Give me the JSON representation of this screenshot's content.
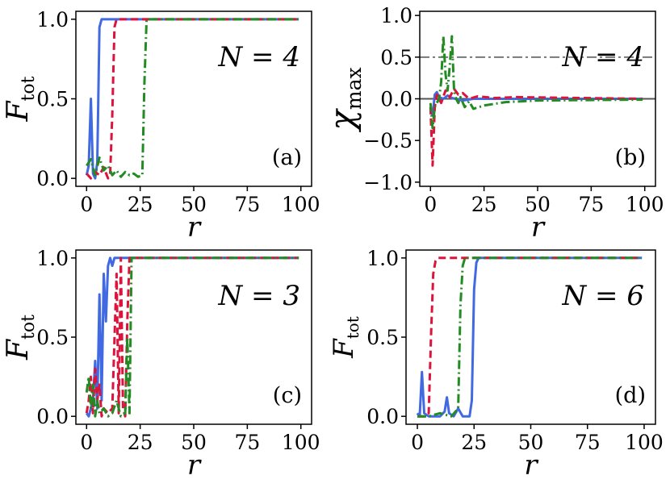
{
  "chart_data": [
    {
      "type": "line",
      "panel_label": "(a)",
      "annotation": "N = 4",
      "xlabel": "r",
      "ylabel": "F",
      "ylabel_sub": "tot",
      "xlim": [
        -5,
        105
      ],
      "ylim": [
        -0.05,
        1.05
      ],
      "xticks": [
        0,
        25,
        50,
        75,
        100
      ],
      "yticks": [
        0.0,
        0.5,
        1.0
      ],
      "ytick_labels": [
        "0.0",
        "0.5",
        "1.0"
      ],
      "reference_lines": [],
      "series": [
        {
          "color": "#4169e1",
          "dash": "solid",
          "x": [
            0,
            1,
            2,
            3,
            4,
            5,
            6,
            7,
            8,
            9,
            10,
            99
          ],
          "y": [
            0.02,
            0.08,
            0.5,
            0.03,
            0.0,
            0.1,
            0.95,
            1.0,
            1.0,
            1.0,
            1.0,
            1.0
          ]
        },
        {
          "color": "#dc143c",
          "dash": "dashed",
          "x": [
            0,
            2,
            4,
            6,
            8,
            10,
            11,
            12,
            13,
            14,
            16,
            99
          ],
          "y": [
            0.03,
            0.0,
            0.04,
            0.02,
            0.07,
            0.0,
            0.03,
            0.4,
            0.95,
            1.0,
            1.0,
            1.0
          ]
        },
        {
          "color": "#228b22",
          "dash": "dashdot",
          "x": [
            0,
            2,
            4,
            6,
            8,
            10,
            12,
            14,
            16,
            18,
            20,
            22,
            24,
            26,
            27,
            28,
            99
          ],
          "y": [
            0.08,
            0.12,
            0.02,
            0.13,
            0.05,
            0.08,
            0.02,
            0.05,
            0.01,
            0.04,
            0.02,
            0.03,
            0.01,
            0.02,
            0.6,
            1.0,
            1.0
          ]
        }
      ]
    },
    {
      "type": "line",
      "panel_label": "(b)",
      "annotation": "N = 4",
      "xlabel": "r",
      "ylabel": "χ",
      "ylabel_sub": "max",
      "xlim": [
        -5,
        105
      ],
      "ylim": [
        -1.05,
        1.05
      ],
      "xticks": [
        0,
        25,
        50,
        75,
        100
      ],
      "yticks": [
        -1.0,
        -0.5,
        0.0,
        0.5,
        1.0
      ],
      "ytick_labels": [
        "−1.0",
        "−0.5",
        "0.0",
        "0.5",
        "1.0"
      ],
      "reference_lines": [
        0.5,
        0.0
      ],
      "series": [
        {
          "color": "#4169e1",
          "dash": "solid",
          "x": [
            0,
            1,
            2,
            3,
            4,
            6,
            8,
            10,
            15,
            20,
            30,
            99
          ],
          "y": [
            -0.1,
            -0.2,
            0.05,
            0.08,
            0.02,
            0.0,
            0.04,
            0.01,
            -0.02,
            0.0,
            0.0,
            0.0
          ]
        },
        {
          "color": "#dc143c",
          "dash": "dashed",
          "x": [
            0,
            1,
            2,
            3,
            5,
            7,
            9,
            11,
            13,
            15,
            18,
            22,
            30,
            40,
            99
          ],
          "y": [
            -0.1,
            -0.8,
            -0.1,
            0.05,
            -0.05,
            0.1,
            0.02,
            0.12,
            0.05,
            0.07,
            0.0,
            0.03,
            0.01,
            0.02,
            0.0
          ]
        },
        {
          "color": "#228b22",
          "dash": "dashdot",
          "x": [
            0,
            1,
            2,
            3,
            4,
            5,
            6,
            7,
            8,
            9,
            10,
            11,
            12,
            13,
            14,
            16,
            18,
            20,
            25,
            35,
            50,
            99
          ],
          "y": [
            -0.05,
            -0.35,
            -0.1,
            -0.05,
            0.0,
            0.2,
            0.75,
            0.3,
            0.1,
            0.4,
            0.75,
            0.1,
            0.0,
            -0.05,
            0.02,
            -0.1,
            -0.03,
            -0.12,
            -0.08,
            -0.04,
            -0.02,
            -0.01
          ]
        }
      ]
    },
    {
      "type": "line",
      "panel_label": "(c)",
      "annotation": "N = 3",
      "xlabel": "r",
      "ylabel": "F",
      "ylabel_sub": "tot",
      "xlim": [
        -5,
        105
      ],
      "ylim": [
        -0.05,
        1.05
      ],
      "xticks": [
        0,
        25,
        50,
        75,
        100
      ],
      "yticks": [
        0.0,
        0.5,
        1.0
      ],
      "ytick_labels": [
        "0.0",
        "0.5",
        "1.0"
      ],
      "reference_lines": [],
      "series": [
        {
          "color": "#4169e1",
          "dash": "solid",
          "x": [
            0,
            1,
            2,
            3,
            4,
            5,
            6,
            7,
            8,
            9,
            10,
            11,
            12,
            13,
            99
          ],
          "y": [
            0.02,
            0.0,
            0.05,
            0.1,
            0.35,
            0.05,
            0.77,
            0.1,
            0.9,
            0.6,
            0.95,
            1.0,
            0.95,
            1.0,
            1.0
          ]
        },
        {
          "color": "#dc143c",
          "dash": "dashed",
          "x": [
            0,
            1,
            2,
            3,
            4,
            5,
            6,
            7,
            8,
            10,
            12,
            14,
            15,
            16,
            17,
            18,
            19,
            20,
            99
          ],
          "y": [
            0.02,
            0.1,
            0.25,
            0.02,
            0.3,
            0.1,
            0.2,
            0.0,
            0.05,
            0.02,
            0.05,
            0.9,
            0.02,
            1.0,
            0.05,
            0.0,
            0.6,
            1.0,
            1.0
          ]
        },
        {
          "color": "#228b22",
          "dash": "dashdot",
          "x": [
            0,
            1,
            2,
            3,
            4,
            5,
            6,
            8,
            10,
            12,
            14,
            16,
            18,
            19,
            20,
            21,
            99
          ],
          "y": [
            0.15,
            0.25,
            0.05,
            0.2,
            0.0,
            0.1,
            0.02,
            0.05,
            0.0,
            0.02,
            0.1,
            0.0,
            0.02,
            0.5,
            0.02,
            1.0,
            1.0
          ]
        }
      ]
    },
    {
      "type": "line",
      "panel_label": "(d)",
      "annotation": "N = 6",
      "xlabel": "r",
      "ylabel": "F",
      "ylabel_sub": "tot",
      "xlim": [
        -5,
        105
      ],
      "ylim": [
        -0.05,
        1.05
      ],
      "xticks": [
        0,
        25,
        50,
        75,
        100
      ],
      "yticks": [
        0.0,
        0.5,
        1.0
      ],
      "ytick_labels": [
        "0.0",
        "0.5",
        "1.0"
      ],
      "reference_lines": [],
      "series": [
        {
          "color": "#4169e1",
          "dash": "solid",
          "x": [
            0,
            1,
            2,
            3,
            5,
            10,
            12,
            13,
            14,
            16,
            18,
            20,
            23,
            24,
            25,
            26,
            27,
            99
          ],
          "y": [
            0.02,
            0.0,
            0.28,
            0.02,
            0.0,
            0.0,
            0.03,
            0.12,
            0.02,
            0.0,
            0.05,
            0.0,
            0.0,
            0.1,
            0.8,
            0.97,
            1.0,
            1.0
          ]
        },
        {
          "color": "#dc143c",
          "dash": "dashed",
          "x": [
            0,
            3,
            5,
            6,
            7,
            8,
            9,
            10,
            99
          ],
          "y": [
            0.0,
            0.0,
            0.02,
            0.5,
            0.9,
            0.98,
            1.0,
            1.0,
            1.0
          ]
        },
        {
          "color": "#228b22",
          "dash": "dashdot",
          "x": [
            0,
            5,
            10,
            15,
            18,
            19,
            20,
            21,
            22,
            99
          ],
          "y": [
            0.0,
            0.0,
            0.02,
            0.0,
            0.05,
            0.7,
            0.95,
            1.0,
            1.0,
            1.0
          ]
        }
      ]
    }
  ]
}
